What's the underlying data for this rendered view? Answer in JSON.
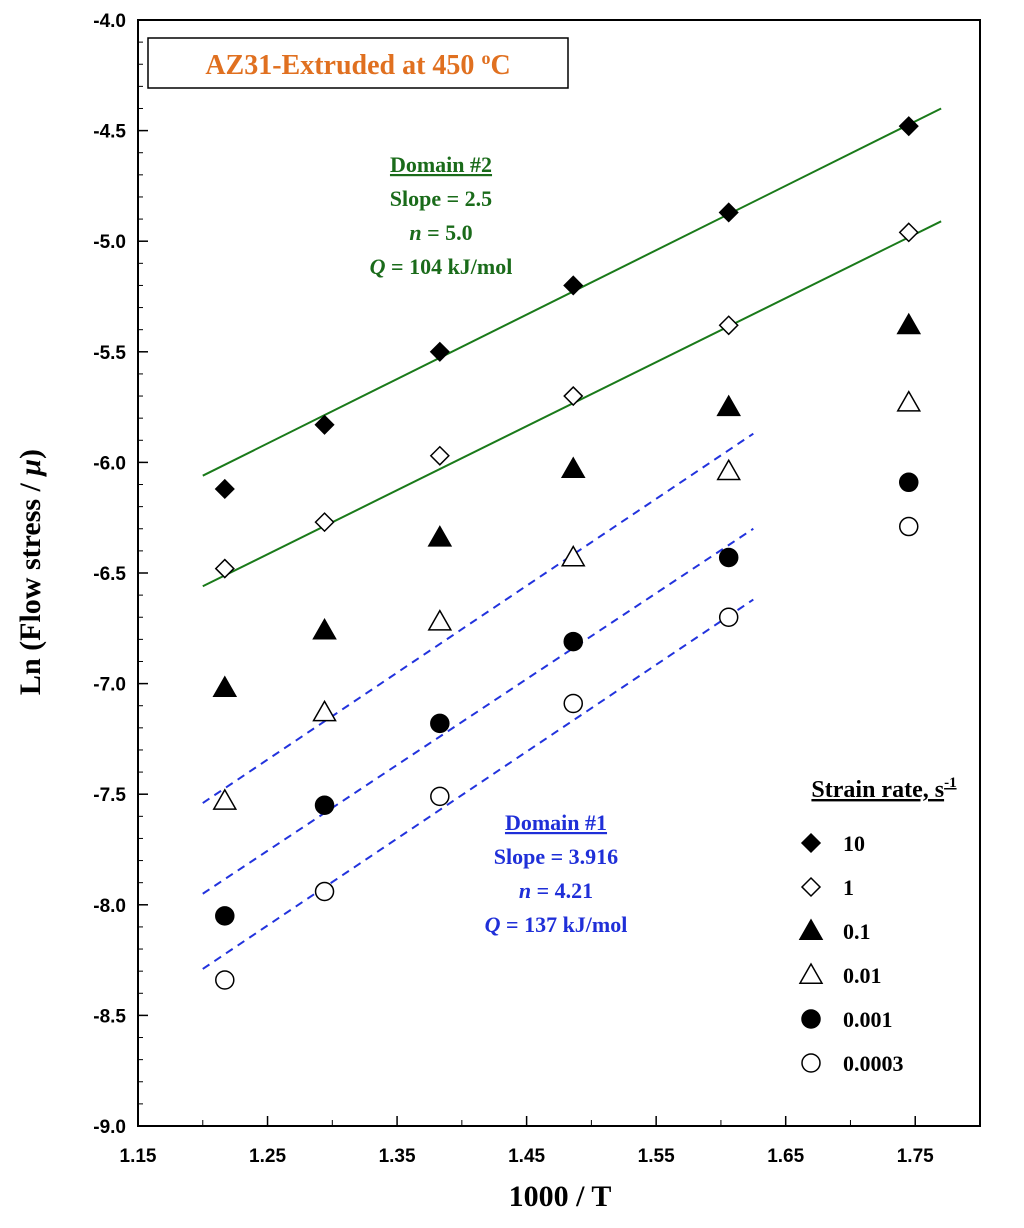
{
  "chart_data": {
    "type": "scatter",
    "title": "AZ31-Extruded at 450 °C",
    "title_parts": {
      "main": "AZ31-Extruded at 450 ",
      "sup": "o",
      "tail": "C"
    },
    "xlabel": "1000 / T",
    "ylabel": "Ln (Flow stress / μ)",
    "ylabel_parts": {
      "main": "Ln (Flow stress / ",
      "italic": "μ",
      "tail": ")"
    },
    "xlim": [
      1.15,
      1.8
    ],
    "ylim": [
      -9.0,
      -4.0
    ],
    "xticks": [
      "1.15",
      "1.25",
      "1.35",
      "1.45",
      "1.55",
      "1.65",
      "1.75"
    ],
    "xtick_values": [
      1.15,
      1.25,
      1.35,
      1.45,
      1.55,
      1.65,
      1.75
    ],
    "yticks": [
      "-4.0",
      "-4.5",
      "-5.0",
      "-5.5",
      "-6.0",
      "-6.5",
      "-7.0",
      "-7.5",
      "-8.0",
      "-8.5",
      "-9.0"
    ],
    "ytick_values": [
      -4.0,
      -4.5,
      -5.0,
      -5.5,
      -6.0,
      -6.5,
      -7.0,
      -7.5,
      -8.0,
      -8.5,
      -9.0
    ],
    "x": [
      1.217,
      1.294,
      1.383,
      1.486,
      1.606,
      1.745
    ],
    "legend_title": "Strain rate, s",
    "legend_title_sup": "-1",
    "series": [
      {
        "name": "10",
        "marker": "diamond-filled",
        "values": [
          -6.12,
          -5.83,
          -5.5,
          -5.2,
          -4.87,
          -4.48
        ]
      },
      {
        "name": "1",
        "marker": "diamond-open",
        "values": [
          -6.48,
          -6.27,
          -5.97,
          -5.7,
          -5.38,
          -4.96
        ]
      },
      {
        "name": "0.1",
        "marker": "triangle-filled",
        "values": [
          -7.02,
          -6.76,
          -6.34,
          -6.03,
          -5.75,
          -5.38
        ]
      },
      {
        "name": "0.01",
        "marker": "triangle-open",
        "values": [
          -7.53,
          -7.13,
          -6.72,
          -6.43,
          -6.04,
          -5.73
        ]
      },
      {
        "name": "0.001",
        "marker": "circle-filled",
        "values": [
          -8.05,
          -7.55,
          -7.18,
          -6.81,
          -6.43,
          -6.09
        ]
      },
      {
        "name": "0.0003",
        "marker": "circle-open",
        "values": [
          -8.34,
          -7.94,
          -7.51,
          -7.09,
          -6.7,
          -6.29
        ]
      }
    ],
    "fit_lines": [
      {
        "name": "Domain #2 fit (10 s-1)",
        "style": "solid",
        "color": "#1a7a1a",
        "x_start": 1.2,
        "y_start": -6.06,
        "x_end": 1.77,
        "y_end": -4.4
      },
      {
        "name": "Domain #2 fit (1 s-1)",
        "style": "solid",
        "color": "#1a7a1a",
        "x_start": 1.2,
        "y_start": -6.56,
        "x_end": 1.77,
        "y_end": -4.91
      },
      {
        "name": "Domain #1 fit (0.01 s-1)",
        "style": "dashed",
        "color": "#2233dd",
        "x_start": 1.2,
        "y_start": -7.54,
        "x_end": 1.625,
        "y_end": -5.87
      },
      {
        "name": "Domain #1 fit (0.001 s-1)",
        "style": "dashed",
        "color": "#2233dd",
        "x_start": 1.2,
        "y_start": -7.95,
        "x_end": 1.625,
        "y_end": -6.3
      },
      {
        "name": "Domain #1 fit (0.0003 s-1)",
        "style": "dashed",
        "color": "#2233dd",
        "x_start": 1.2,
        "y_start": -8.29,
        "x_end": 1.625,
        "y_end": -6.62
      }
    ],
    "annotations": {
      "domain2": {
        "color": "#1a6b1a",
        "heading": "Domain #2",
        "slope": "Slope = 2.5",
        "n_label": "n",
        "n_value": " = 5.0",
        "q_label": "Q",
        "q_value": " = 104 kJ/mol"
      },
      "domain1": {
        "color": "#1f2fd8",
        "heading": "Domain #1",
        "slope": "Slope = 3.916",
        "n_label": "n",
        "n_value": " = 4.21",
        "q_label": "Q",
        "q_value": " = 137 kJ/mol"
      }
    }
  }
}
